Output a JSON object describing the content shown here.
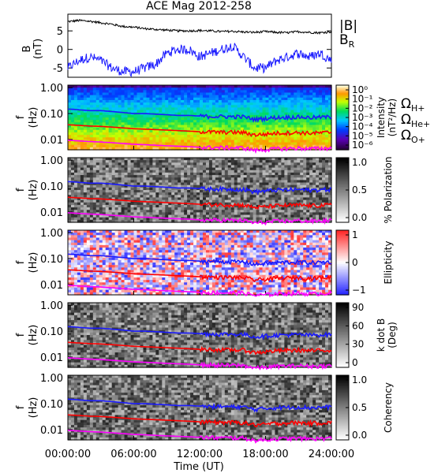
{
  "title": "ACE Mag 2012-258",
  "time_axis": {
    "label": "Time (UT)",
    "ticks": [
      "00:00:00",
      "06:00:00",
      "12:00:00",
      "18:00:00",
      "24:00:00"
    ],
    "range_hours": [
      0,
      24
    ]
  },
  "bfield_panel": {
    "ylabel_main": "B",
    "ylabel_unit": "(nT)",
    "yticks": [
      "5",
      "0",
      "-5"
    ],
    "ylim": [
      -7.5,
      9.5
    ],
    "legend": [
      {
        "label": "|B|",
        "color": "#000000"
      },
      {
        "label": "B",
        "sub": "R",
        "color": "#1a1aff"
      }
    ]
  },
  "freq_axis": {
    "ylabel_main": "f",
    "ylabel_unit": "(Hz)",
    "ticks": [
      "1.00",
      "0.10",
      "0.01"
    ],
    "log_range": [
      0.004,
      1.25
    ]
  },
  "gyro_legend": [
    {
      "symbol": "Ω",
      "sub": "H+",
      "color": "#1a1aff"
    },
    {
      "symbol": "Ω",
      "sub": "He+",
      "color": "#ff0000"
    },
    {
      "symbol": "Ω",
      "sub": "O+",
      "color": "#ff00ff"
    }
  ],
  "spectral_panels": [
    {
      "id": "intensity",
      "colorbar": "rainbow",
      "cb_label": "Intensity",
      "cb_unit": "(nT²/Hz)",
      "cb_ticks": [
        "10⁰",
        "10⁻¹",
        "10⁻²",
        "10⁻³",
        "10⁻⁴",
        "10⁻⁵",
        "10⁻⁶"
      ]
    },
    {
      "id": "polarization",
      "colorbar": "gray",
      "cb_label": "% Polarization",
      "cb_unit": "",
      "cb_ticks": [
        "1.0",
        "0.5",
        "0.0"
      ]
    },
    {
      "id": "ellipticity",
      "colorbar": "bwr",
      "cb_label": "Ellipticity",
      "cb_unit": "",
      "cb_ticks": [
        "1",
        "0",
        "−1"
      ]
    },
    {
      "id": "kdotb",
      "colorbar": "gray",
      "cb_label": "k dot B",
      "cb_unit": "(Deg)",
      "cb_ticks": [
        "90",
        "60",
        "30",
        "0"
      ]
    },
    {
      "id": "coherency",
      "colorbar": "gray",
      "cb_label": "Coherency",
      "cb_unit": "",
      "cb_ticks": [
        "1.0",
        "0.5",
        "0.0"
      ]
    }
  ],
  "chart_data": {
    "type": "line",
    "title": "ACE Mag 2012-258",
    "xlabel": "Time (UT)",
    "x_hours": [
      0,
      1,
      2,
      3,
      4,
      5,
      6,
      7,
      8,
      9,
      10,
      11,
      12,
      13,
      14,
      15,
      16,
      17,
      18,
      19,
      20,
      21,
      22,
      23,
      24
    ],
    "series": [
      {
        "name": "|B|",
        "values": [
          7.5,
          7.8,
          7.6,
          7.2,
          6.8,
          6.2,
          6.0,
          5.6,
          5.4,
          5.2,
          5.0,
          5.0,
          5.1,
          5.0,
          4.8,
          4.9,
          4.7,
          4.6,
          4.8,
          4.6,
          4.5,
          4.8,
          4.6,
          4.5,
          4.8
        ]
      },
      {
        "name": "B_R",
        "values": [
          -5,
          -3,
          -2,
          -3,
          -5,
          -6,
          -6,
          -5,
          -4,
          -1,
          0,
          0,
          -2,
          -1,
          0,
          1,
          -2,
          -5,
          -5,
          -3,
          -2,
          -1,
          -2,
          -1,
          -3
        ]
      },
      {
        "name": "ΩH+ (Hz)",
        "values": [
          0.15,
          0.14,
          0.13,
          0.13,
          0.12,
          0.11,
          0.1,
          0.1,
          0.095,
          0.09,
          0.085,
          0.085,
          0.08,
          0.078,
          0.077,
          0.076,
          0.075,
          0.06,
          0.065,
          0.07,
          0.072,
          0.074,
          0.07,
          0.072,
          0.075
        ]
      },
      {
        "name": "ΩHe+ (Hz)",
        "values": [
          0.037,
          0.035,
          0.033,
          0.032,
          0.03,
          0.028,
          0.026,
          0.025,
          0.024,
          0.023,
          0.022,
          0.021,
          0.02,
          0.0195,
          0.019,
          0.019,
          0.0185,
          0.015,
          0.016,
          0.0175,
          0.018,
          0.0185,
          0.0175,
          0.018,
          0.019
        ]
      },
      {
        "name": "ΩO+ (Hz)",
        "values": [
          0.0094,
          0.0088,
          0.0083,
          0.008,
          0.0075,
          0.007,
          0.0065,
          0.0063,
          0.006,
          0.0057,
          0.0055,
          0.0053,
          0.005,
          0.0049,
          0.0048,
          0.0048,
          0.0047,
          0.0038,
          0.004,
          0.0044,
          0.0045,
          0.0046,
          0.0044,
          0.0045,
          0.0047
        ]
      }
    ]
  }
}
